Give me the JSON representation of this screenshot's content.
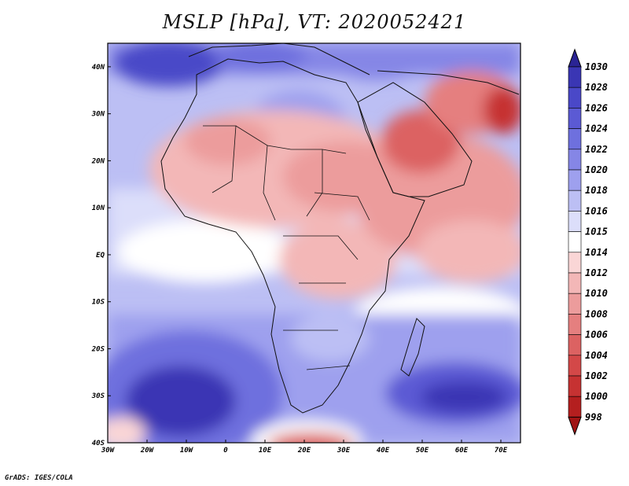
{
  "title": "MSLP [hPa], VT: 2020052421",
  "credit": "GrADS: IGES/COLA",
  "axes": {
    "x_ticks": [
      "30W",
      "20W",
      "10W",
      "0",
      "10E",
      "20E",
      "30E",
      "40E",
      "50E",
      "60E",
      "70E"
    ],
    "x_values": [
      -30,
      -20,
      -10,
      0,
      10,
      20,
      30,
      40,
      50,
      60,
      70
    ],
    "y_ticks": [
      "40N",
      "30N",
      "20N",
      "10N",
      "EQ",
      "10S",
      "20S",
      "30S",
      "40S"
    ],
    "y_values": [
      40,
      30,
      20,
      10,
      0,
      -10,
      -20,
      -30,
      -40
    ],
    "lon_range": [
      -30,
      75
    ],
    "lat_range": [
      -40,
      45
    ]
  },
  "colorbar": {
    "levels": [
      "1030",
      "1028",
      "1026",
      "1024",
      "1022",
      "1020",
      "1018",
      "1016",
      "1015",
      "1014",
      "1012",
      "1010",
      "1008",
      "1006",
      "1004",
      "1002",
      "1000",
      "998"
    ],
    "colors": [
      "#2a2494",
      "#3a36b4",
      "#4a48c8",
      "#5b5ad4",
      "#6e70de",
      "#8586e6",
      "#9ea0ee",
      "#bcbff4",
      "#dcdefa",
      "#ffffff",
      "#fad6d6",
      "#f3b7b7",
      "#ec9c9c",
      "#e57f7f",
      "#dc6262",
      "#d34848",
      "#c63232",
      "#b41f1f",
      "#a01414"
    ]
  },
  "pressure_centers": [
    {
      "label": "high",
      "lon": -15,
      "lat": -33,
      "value": 1030
    },
    {
      "label": "high",
      "lon": 60,
      "lat": -32,
      "value": 1028
    },
    {
      "label": "high",
      "lon": -15,
      "lat": 42,
      "value": 1026
    },
    {
      "label": "low",
      "lon": 65,
      "lat": 28,
      "value": 1000
    },
    {
      "label": "low",
      "lon": 48,
      "lat": 20,
      "value": 1004
    },
    {
      "label": "low",
      "lon": 20,
      "lat": -40,
      "value": 1004
    }
  ]
}
